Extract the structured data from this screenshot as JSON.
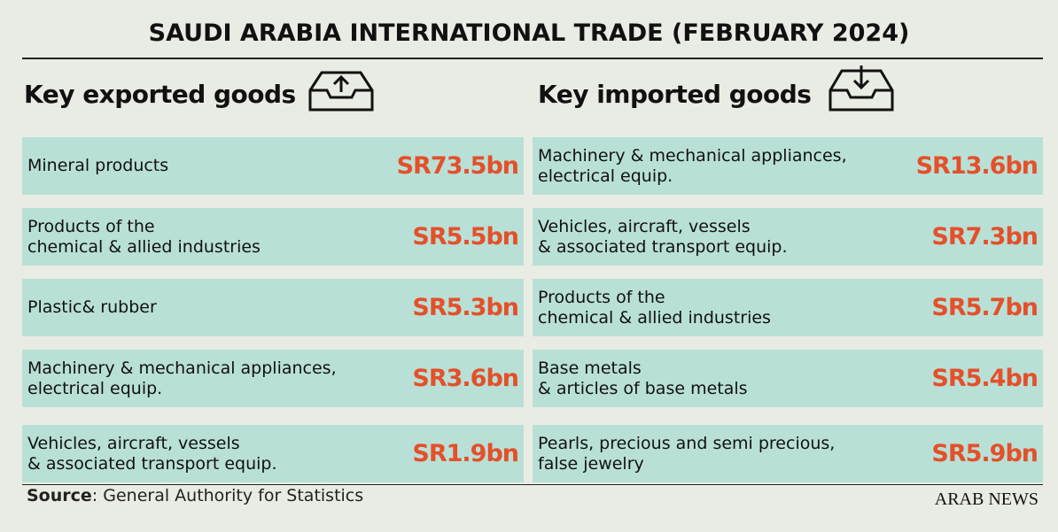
{
  "title": "SAUDI ARABIA INTERNATIONAL TRADE (FEBRUARY 2024)",
  "columns": [
    {
      "heading": "Key exported goods",
      "rows": [
        {
          "label": [
            "Mineral products"
          ],
          "value": "SR73.5bn"
        },
        {
          "label": [
            "Products of the",
            "chemical & allied industries"
          ],
          "value": "SR5.5bn"
        },
        {
          "label": [
            "Plastic& rubber"
          ],
          "value": "SR5.3bn"
        },
        {
          "label": [
            "Machinery & mechanical appliances,",
            "electrical equip."
          ],
          "value": "SR3.6bn"
        },
        {
          "label": [
            "Vehicles, aircraft, vessels",
            "& associated transport equip."
          ],
          "value": "SR1.9bn"
        }
      ]
    },
    {
      "heading": "Key imported goods",
      "rows": [
        {
          "label": [
            "Machinery & mechanical appliances,",
            "electrical equip."
          ],
          "value": "SR13.6bn"
        },
        {
          "label": [
            "Vehicles, aircraft, vessels",
            "& associated transport equip."
          ],
          "value": "SR7.3bn"
        },
        {
          "label": [
            "Products of the",
            "chemical & allied industries"
          ],
          "value": "SR5.7bn"
        },
        {
          "label": [
            "Base metals",
            "& articles of base metals"
          ],
          "value": "SR5.4bn"
        },
        {
          "label": [
            "Pearls, precious and semi precious,",
            "false jewelry"
          ],
          "value": "SR5.9bn"
        }
      ]
    }
  ],
  "source": {
    "label": "Source",
    "text": ": General Authority for Statistics"
  },
  "logo": "ARAB NEWS"
}
